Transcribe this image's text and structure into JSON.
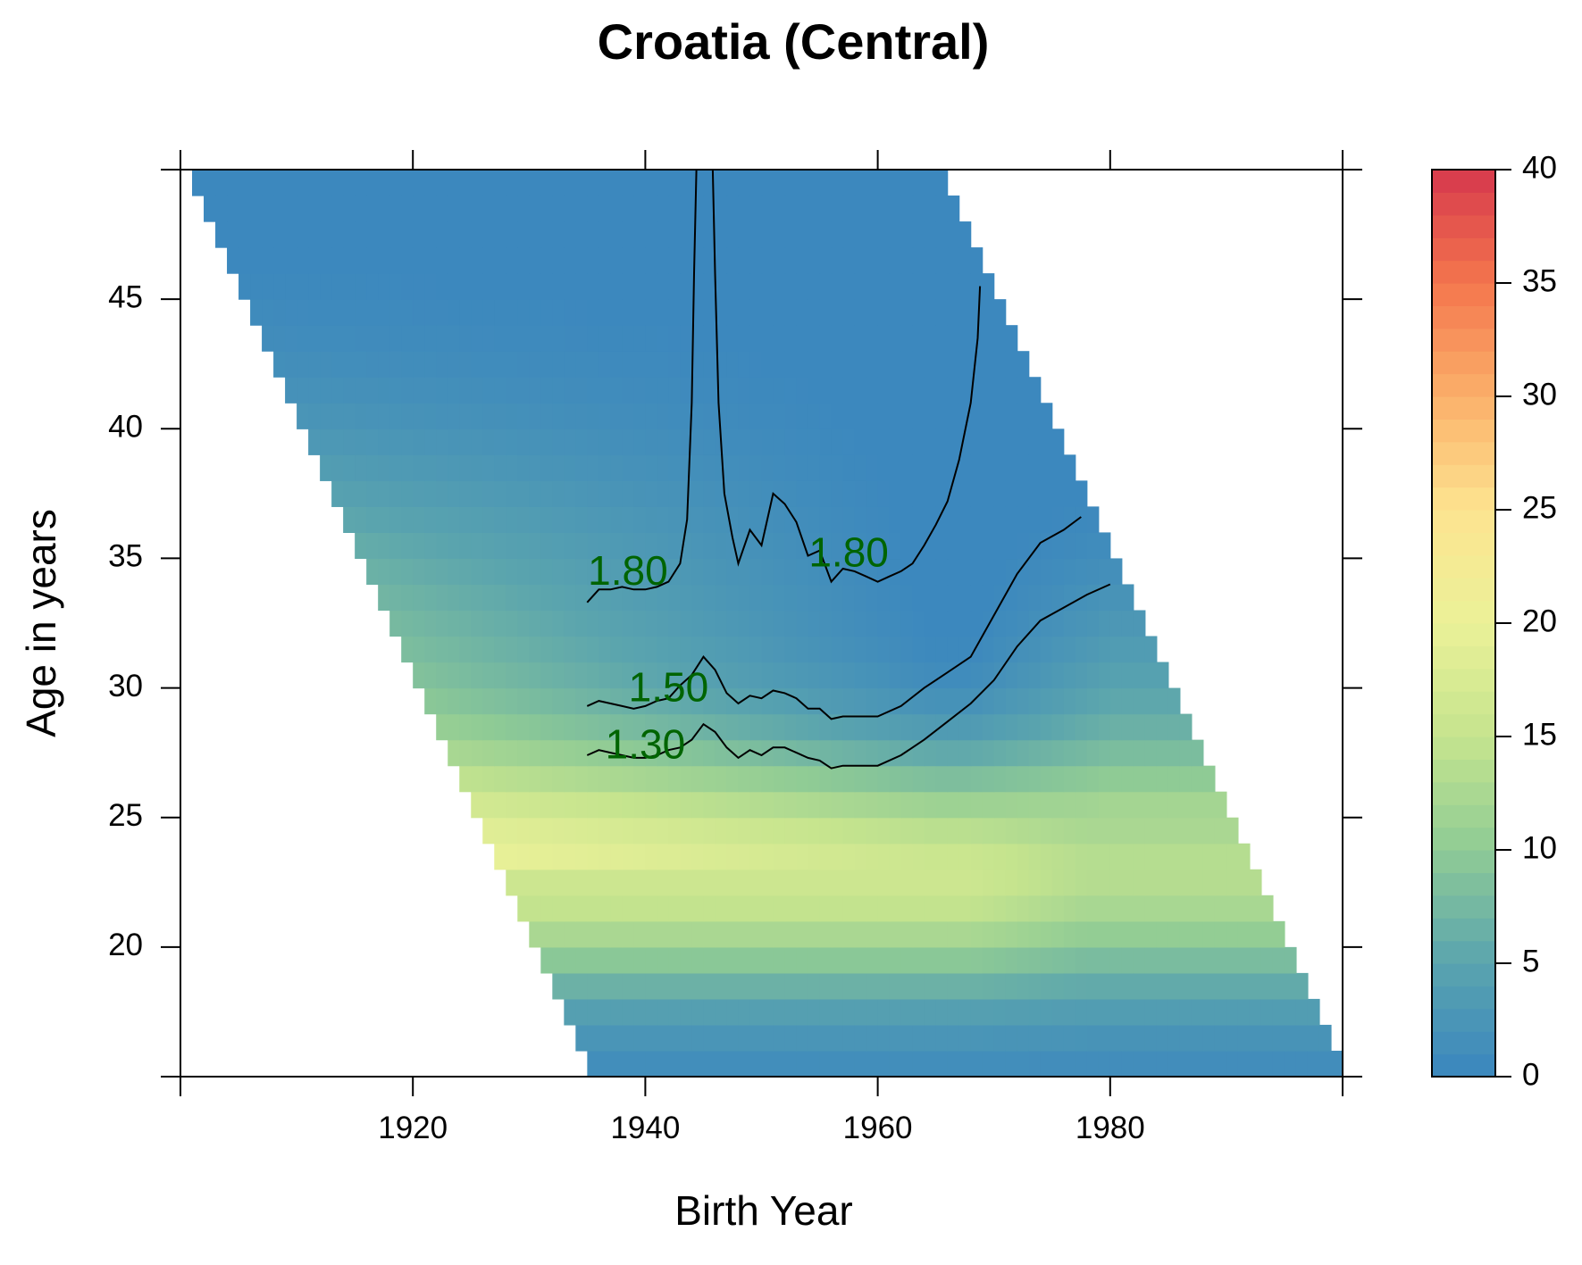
{
  "chart_data": {
    "type": "heatmap",
    "title": "Croatia (Central)",
    "xlabel": "Birth Year",
    "ylabel": "Age in years",
    "xlim": [
      1900,
      2000
    ],
    "ylim": [
      15,
      50
    ],
    "xticks": [
      1920,
      1940,
      1960,
      1980
    ],
    "yticks": [
      20,
      25,
      30,
      35,
      40,
      45
    ],
    "period_range": [
      1950,
      2015
    ],
    "grid": false,
    "colorbar": {
      "min": 0,
      "max": 40,
      "ticks": [
        0,
        5,
        10,
        15,
        20,
        25,
        30,
        35,
        40
      ],
      "palette": [
        "#3a86bf",
        "#5aa4ae",
        "#8fcb95",
        "#c5e48e",
        "#ebf198",
        "#fde490",
        "#fbb06a",
        "#f4764d",
        "#d6384d"
      ]
    },
    "contour_color": "#000000",
    "contour_label_color": "#006400",
    "contours": [
      {
        "label": "1.80",
        "points": [
          [
            1935,
            33.3
          ],
          [
            1936,
            33.8
          ],
          [
            1937,
            33.8
          ],
          [
            1938,
            33.9
          ],
          [
            1939,
            33.8
          ],
          [
            1940,
            33.8
          ],
          [
            1941,
            33.9
          ],
          [
            1942,
            34.1
          ],
          [
            1943,
            34.8
          ],
          [
            1943.6,
            36.5
          ],
          [
            1944,
            41
          ],
          [
            1944.2,
            46
          ],
          [
            1944.4,
            50
          ]
        ],
        "label_at": [
          1938.5,
          34.4
        ]
      },
      {
        "label": "1.80",
        "points": [
          [
            1945.8,
            50
          ],
          [
            1946,
            46
          ],
          [
            1946.3,
            41
          ],
          [
            1946.8,
            37.5
          ],
          [
            1947.5,
            35.8
          ],
          [
            1948,
            34.8
          ],
          [
            1949,
            36.1
          ],
          [
            1950,
            35.5
          ],
          [
            1951,
            37.5
          ],
          [
            1952,
            37.1
          ],
          [
            1953,
            36.4
          ],
          [
            1954,
            35.1
          ],
          [
            1955,
            35.3
          ],
          [
            1956,
            34.1
          ],
          [
            1957,
            34.6
          ],
          [
            1958,
            34.5
          ],
          [
            1959,
            34.3
          ],
          [
            1960,
            34.1
          ],
          [
            1961,
            34.3
          ],
          [
            1962,
            34.5
          ],
          [
            1963,
            34.8
          ],
          [
            1964,
            35.5
          ],
          [
            1965,
            36.3
          ],
          [
            1966,
            37.2
          ],
          [
            1967,
            38.8
          ],
          [
            1968,
            41
          ],
          [
            1968.6,
            43.5
          ],
          [
            1968.8,
            45.5
          ]
        ],
        "label_at": [
          1957.5,
          35.1
        ]
      },
      {
        "label": "1.50",
        "points": [
          [
            1935,
            29.3
          ],
          [
            1936,
            29.5
          ],
          [
            1937,
            29.4
          ],
          [
            1938,
            29.3
          ],
          [
            1939,
            29.2
          ],
          [
            1940,
            29.3
          ],
          [
            1941,
            29.5
          ],
          [
            1942,
            29.6
          ],
          [
            1943,
            30.1
          ],
          [
            1944,
            30.5
          ],
          [
            1945,
            31.2
          ],
          [
            1946,
            30.7
          ],
          [
            1947,
            29.8
          ],
          [
            1948,
            29.4
          ],
          [
            1949,
            29.7
          ],
          [
            1950,
            29.6
          ],
          [
            1951,
            29.9
          ],
          [
            1952,
            29.8
          ],
          [
            1953,
            29.6
          ],
          [
            1954,
            29.2
          ],
          [
            1955,
            29.2
          ],
          [
            1956,
            28.8
          ],
          [
            1957,
            28.9
          ],
          [
            1958,
            28.9
          ],
          [
            1959,
            28.9
          ],
          [
            1960,
            28.9
          ],
          [
            1962,
            29.3
          ],
          [
            1964,
            30.0
          ],
          [
            1966,
            30.6
          ],
          [
            1968,
            31.2
          ],
          [
            1970,
            32.8
          ],
          [
            1972,
            34.4
          ],
          [
            1974,
            35.6
          ],
          [
            1976,
            36.1
          ],
          [
            1977.5,
            36.6
          ]
        ],
        "label_at": [
          1942,
          29.9
        ]
      },
      {
        "label": "1.30",
        "points": [
          [
            1935,
            27.4
          ],
          [
            1936,
            27.6
          ],
          [
            1937,
            27.5
          ],
          [
            1938,
            27.4
          ],
          [
            1939,
            27.3
          ],
          [
            1940,
            27.3
          ],
          [
            1941,
            27.4
          ],
          [
            1942,
            27.6
          ],
          [
            1943,
            27.7
          ],
          [
            1944,
            28.0
          ],
          [
            1945,
            28.6
          ],
          [
            1946,
            28.3
          ],
          [
            1947,
            27.7
          ],
          [
            1948,
            27.3
          ],
          [
            1949,
            27.6
          ],
          [
            1950,
            27.4
          ],
          [
            1951,
            27.7
          ],
          [
            1952,
            27.7
          ],
          [
            1953,
            27.5
          ],
          [
            1954,
            27.3
          ],
          [
            1955,
            27.2
          ],
          [
            1956,
            26.9
          ],
          [
            1957,
            27.0
          ],
          [
            1958,
            27.0
          ],
          [
            1959,
            27.0
          ],
          [
            1960,
            27.0
          ],
          [
            1962,
            27.4
          ],
          [
            1964,
            28.0
          ],
          [
            1966,
            28.7
          ],
          [
            1968,
            29.4
          ],
          [
            1970,
            30.3
          ],
          [
            1972,
            31.6
          ],
          [
            1974,
            32.6
          ],
          [
            1976,
            33.1
          ],
          [
            1978,
            33.6
          ],
          [
            1980,
            34.0
          ]
        ],
        "label_at": [
          1940,
          27.7
        ]
      }
    ]
  }
}
